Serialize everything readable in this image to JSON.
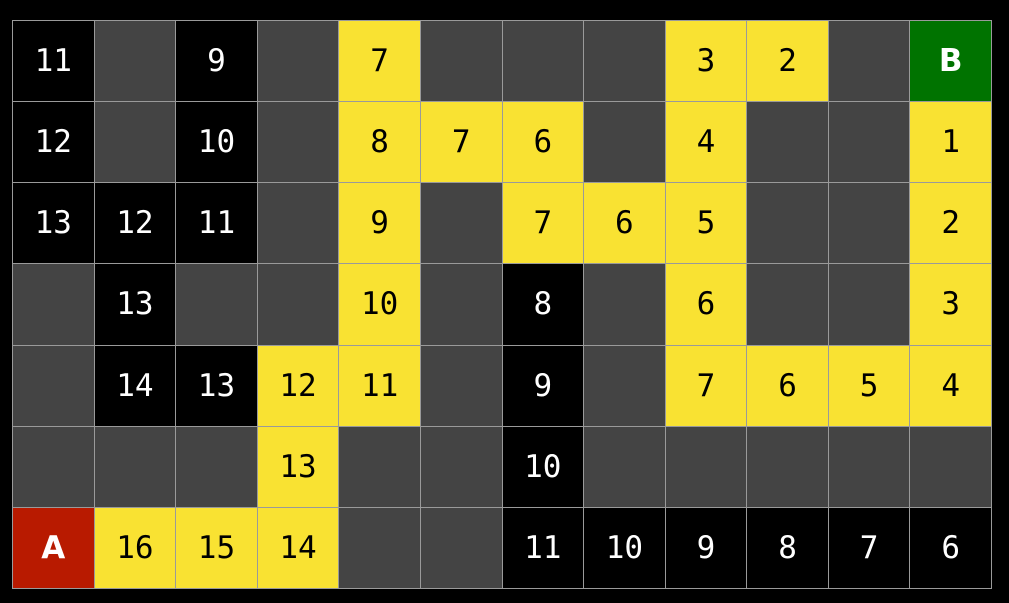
{
  "colors": {
    "wall": "#444444",
    "explored": "#000000",
    "path": "#f9e232",
    "start": "#b81a00",
    "goal": "#007300"
  },
  "legend_codes": {
    "w": "wall",
    "e": "explored",
    "p": "path",
    "A": "start",
    "B": "goal"
  },
  "grid": [
    [
      [
        "e",
        "11"
      ],
      [
        "w",
        ""
      ],
      [
        "e",
        "9"
      ],
      [
        "w",
        ""
      ],
      [
        "p",
        "7"
      ],
      [
        "w",
        ""
      ],
      [
        "w",
        ""
      ],
      [
        "w",
        ""
      ],
      [
        "p",
        "3"
      ],
      [
        "p",
        "2"
      ],
      [
        "w",
        ""
      ],
      [
        "B",
        "B"
      ]
    ],
    [
      [
        "e",
        "12"
      ],
      [
        "w",
        ""
      ],
      [
        "e",
        "10"
      ],
      [
        "w",
        ""
      ],
      [
        "p",
        "8"
      ],
      [
        "p",
        "7"
      ],
      [
        "p",
        "6"
      ],
      [
        "w",
        ""
      ],
      [
        "p",
        "4"
      ],
      [
        "w",
        ""
      ],
      [
        "w",
        ""
      ],
      [
        "p",
        "1"
      ]
    ],
    [
      [
        "e",
        "13"
      ],
      [
        "e",
        "12"
      ],
      [
        "e",
        "11"
      ],
      [
        "w",
        ""
      ],
      [
        "p",
        "9"
      ],
      [
        "w",
        ""
      ],
      [
        "p",
        "7"
      ],
      [
        "p",
        "6"
      ],
      [
        "p",
        "5"
      ],
      [
        "w",
        ""
      ],
      [
        "w",
        ""
      ],
      [
        "p",
        "2"
      ]
    ],
    [
      [
        "w",
        ""
      ],
      [
        "e",
        "13"
      ],
      [
        "w",
        ""
      ],
      [
        "w",
        ""
      ],
      [
        "p",
        "10"
      ],
      [
        "w",
        ""
      ],
      [
        "e",
        "8"
      ],
      [
        "w",
        ""
      ],
      [
        "p",
        "6"
      ],
      [
        "w",
        ""
      ],
      [
        "w",
        ""
      ],
      [
        "p",
        "3"
      ]
    ],
    [
      [
        "w",
        ""
      ],
      [
        "e",
        "14"
      ],
      [
        "e",
        "13"
      ],
      [
        "p",
        "12"
      ],
      [
        "p",
        "11"
      ],
      [
        "w",
        ""
      ],
      [
        "e",
        "9"
      ],
      [
        "w",
        ""
      ],
      [
        "p",
        "7"
      ],
      [
        "p",
        "6"
      ],
      [
        "p",
        "5"
      ],
      [
        "p",
        "4"
      ]
    ],
    [
      [
        "w",
        ""
      ],
      [
        "w",
        ""
      ],
      [
        "w",
        ""
      ],
      [
        "p",
        "13"
      ],
      [
        "w",
        ""
      ],
      [
        "w",
        ""
      ],
      [
        "e",
        "10"
      ],
      [
        "w",
        ""
      ],
      [
        "w",
        ""
      ],
      [
        "w",
        ""
      ],
      [
        "w",
        ""
      ],
      [
        "w",
        ""
      ]
    ],
    [
      [
        "A",
        "A"
      ],
      [
        "p",
        "16"
      ],
      [
        "p",
        "15"
      ],
      [
        "p",
        "14"
      ],
      [
        "w",
        ""
      ],
      [
        "w",
        ""
      ],
      [
        "e",
        "11"
      ],
      [
        "e",
        "10"
      ],
      [
        "e",
        "9"
      ],
      [
        "e",
        "8"
      ],
      [
        "e",
        "7"
      ],
      [
        "e",
        "6"
      ]
    ]
  ]
}
